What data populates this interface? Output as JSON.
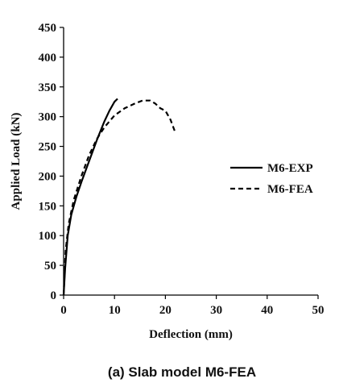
{
  "chart_data": {
    "type": "line",
    "caption": "(a) Slab model M6-FEA",
    "xlabel": "Deflection (mm)",
    "ylabel": "Applied Load (kN)",
    "xlim": [
      0,
      50
    ],
    "ylim": [
      0,
      450
    ],
    "xticks": [
      0,
      10,
      20,
      30,
      40,
      50
    ],
    "yticks": [
      0,
      50,
      100,
      150,
      200,
      250,
      300,
      350,
      400,
      450
    ],
    "grid": false,
    "legend_position": "right",
    "series": [
      {
        "name": "M6-EXP",
        "style": "solid",
        "color": "#000000",
        "x": [
          0,
          0.3,
          0.8,
          1.5,
          2.5,
          3.5,
          5,
          6.5,
          8,
          9,
          10,
          10.6
        ],
        "y": [
          0,
          45,
          100,
          135,
          165,
          190,
          225,
          260,
          292,
          310,
          325,
          330
        ]
      },
      {
        "name": "M6-FEA",
        "style": "dashed",
        "color": "#000000",
        "x": [
          0,
          0.4,
          1,
          2,
          3.5,
          5,
          6.5,
          8,
          10,
          12,
          14,
          15.5,
          17,
          18,
          19,
          20,
          21,
          22
        ],
        "y": [
          0,
          75,
          120,
          160,
          200,
          235,
          262,
          282,
          302,
          314,
          322,
          327,
          327,
          322,
          314,
          310,
          295,
          272
        ]
      }
    ]
  }
}
